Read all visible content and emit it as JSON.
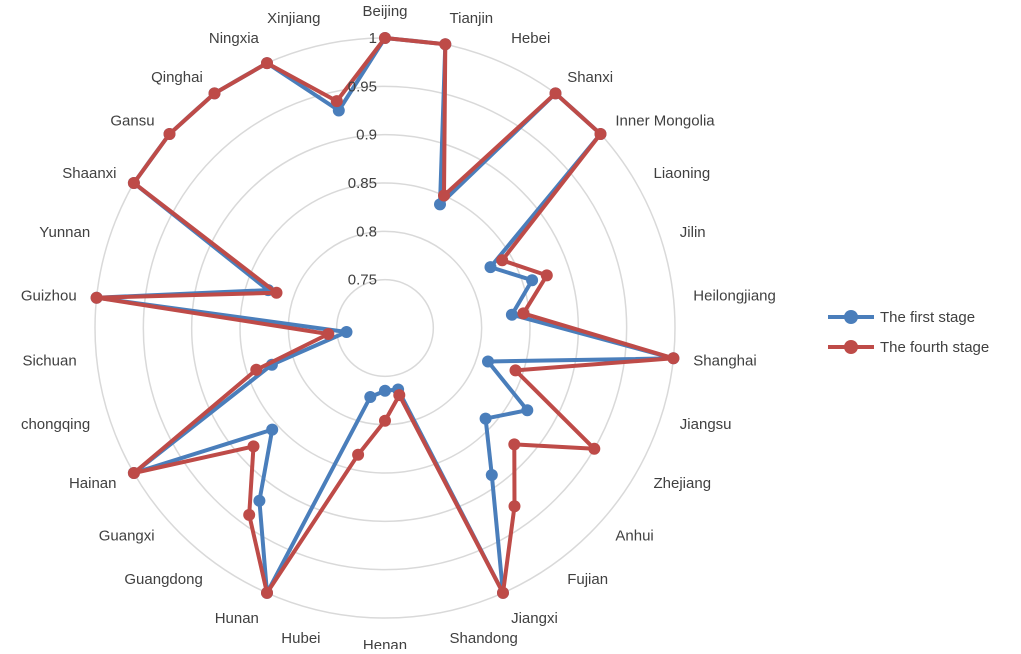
{
  "chart_data": {
    "type": "radar",
    "categories": [
      "Beijing",
      "Tianjin",
      "Hebei",
      "Shanxi",
      "Inner Mongolia",
      "Liaoning",
      "Jilin",
      "Heilongjiang",
      "Shanghai",
      "Jiangsu",
      "Zhejiang",
      "Anhui",
      "Fujian",
      "Jiangxi",
      "Shandong",
      "Henan",
      "Hubei",
      "Hunan",
      "Guangdong",
      "Guangxi",
      "Hainan",
      "chongqing",
      "Sichuan",
      "Guizhou",
      "Yunnan",
      "Shaanxi",
      "Gansu",
      "Qinghai",
      "Ningxia",
      "Xinjiang"
    ],
    "series": [
      {
        "name": "The first stage",
        "values": [
          1,
          1,
          0.84,
          1,
          1,
          0.826,
          0.86,
          0.832,
          1,
          0.812,
          0.87,
          0.84,
          0.888,
          1,
          0.765,
          0.765,
          0.773,
          1,
          0.921,
          0.857,
          1,
          0.823,
          0.74,
          1,
          0.827,
          1,
          1,
          1,
          1,
          0.93
        ],
        "color": "#4A7EBB"
      },
      {
        "name": "The fourth stage",
        "values": [
          1,
          1,
          0.85,
          1,
          1,
          0.84,
          0.876,
          0.844,
          1,
          0.842,
          0.95,
          0.88,
          0.928,
          1,
          0.771,
          0.796,
          0.834,
          1,
          0.939,
          0.883,
          1,
          0.84,
          0.759,
          1,
          0.818,
          1,
          1,
          1,
          1,
          0.94
        ],
        "color": "#BE4B48"
      }
    ],
    "radial_ticks": [
      "0.75",
      "0.8",
      "0.85",
      "0.9",
      "0.95",
      "1"
    ],
    "rlim": [
      0.7,
      1
    ],
    "grid": true,
    "legend_position": "right"
  },
  "legend": {
    "items": [
      {
        "label": "The first stage",
        "color": "#4A7EBB"
      },
      {
        "label": "The fourth stage",
        "color": "#BE4B48"
      }
    ]
  }
}
